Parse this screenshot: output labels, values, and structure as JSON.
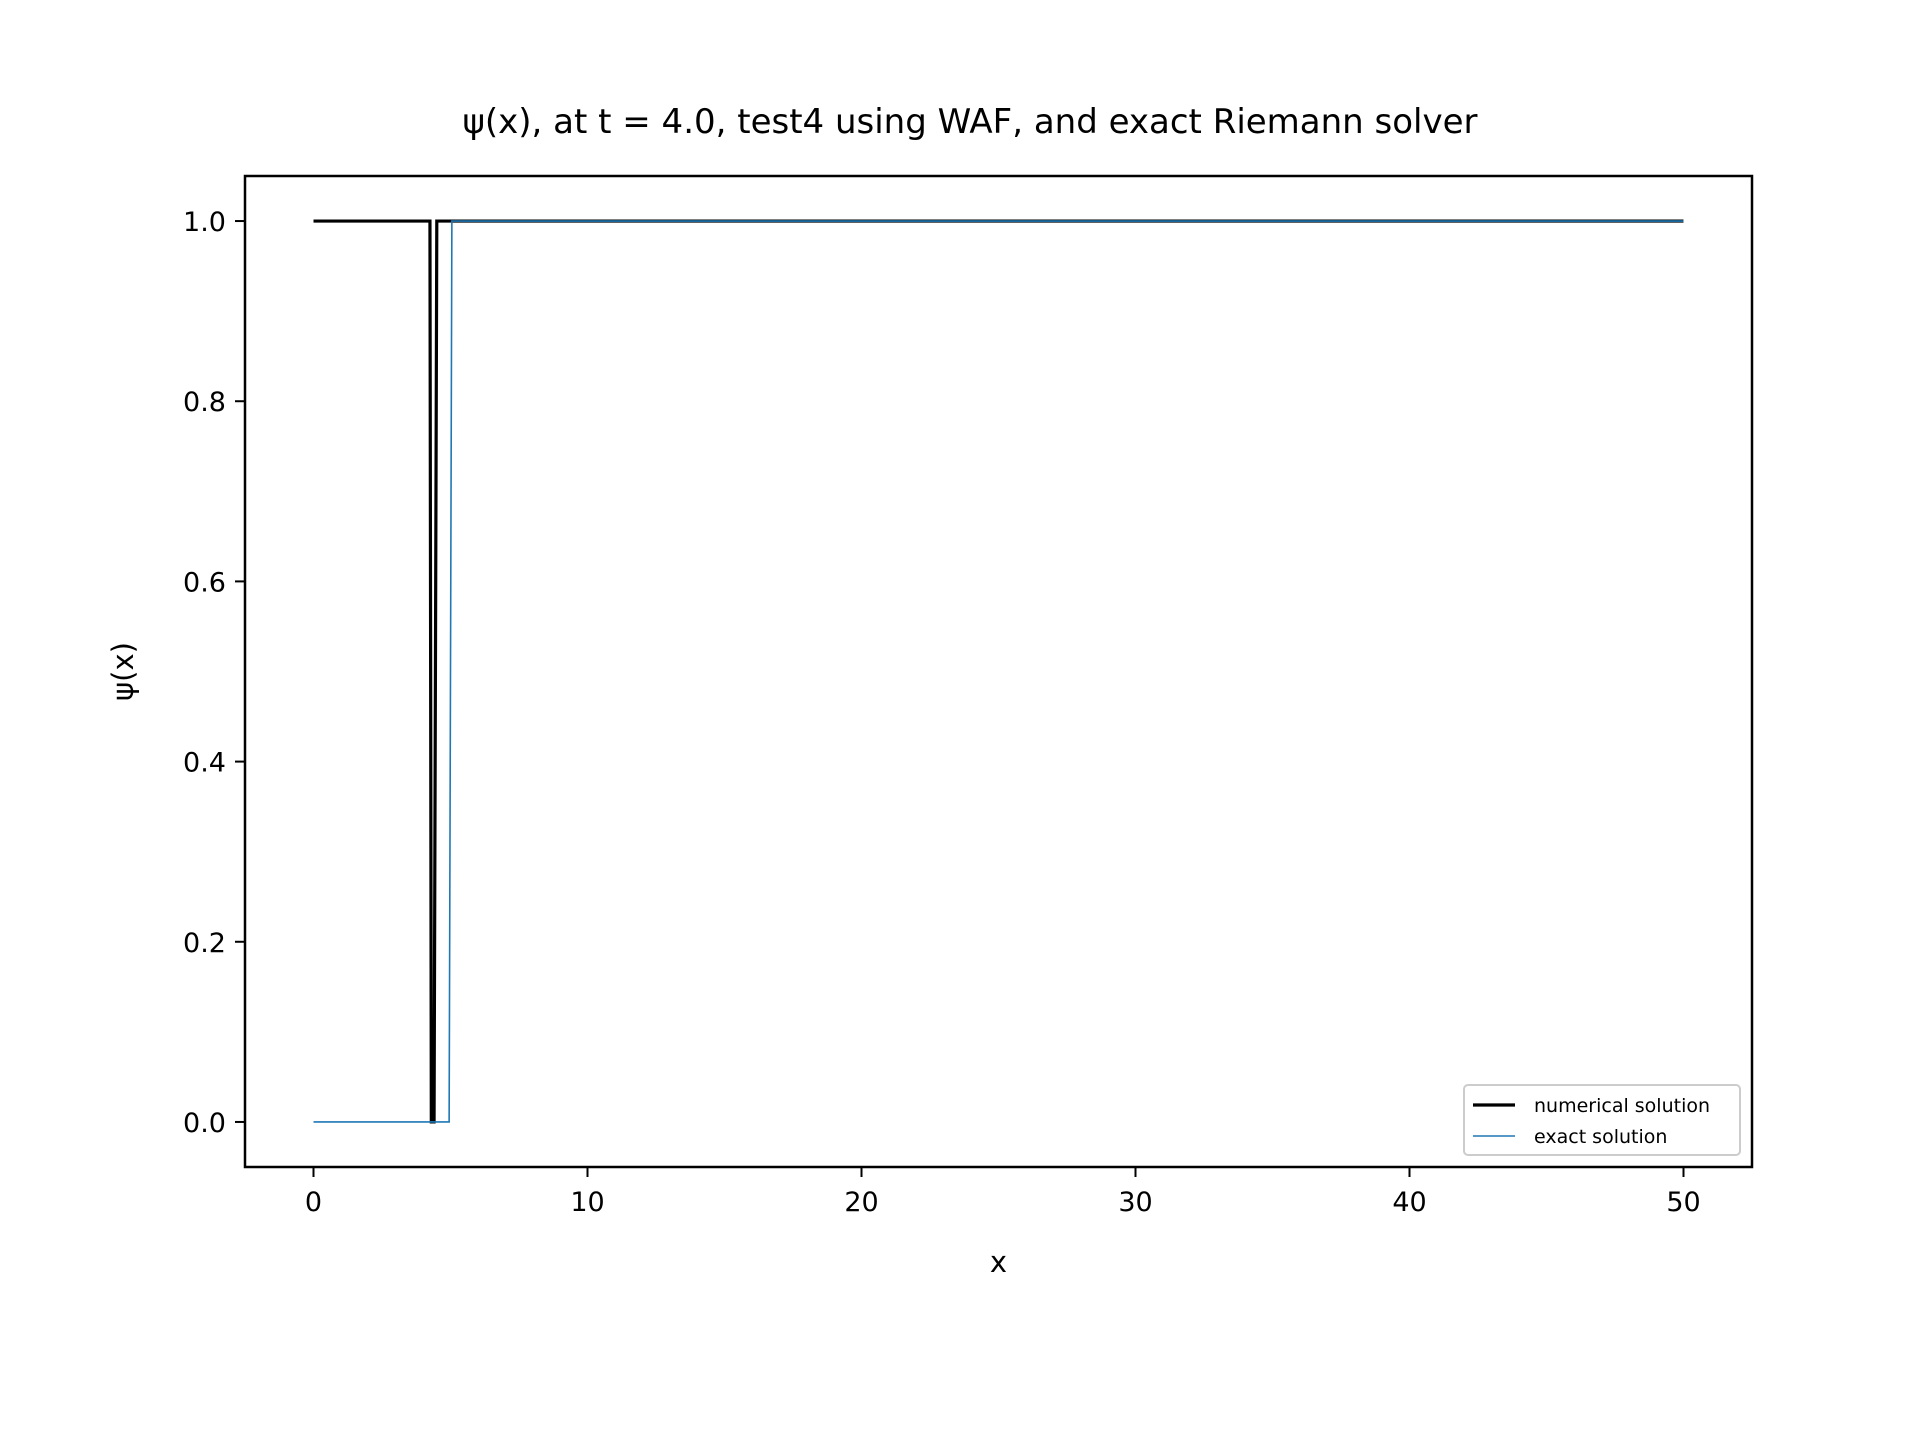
{
  "chart_data": {
    "type": "line",
    "title": "ψ(x), at t = 4.0, test4 using WAF, and exact Riemann solver",
    "xlabel": "x",
    "ylabel": "ψ(x)",
    "xlim": [
      -2.5,
      52.5
    ],
    "ylim": [
      -0.05,
      1.05
    ],
    "xticks": [
      0,
      10,
      20,
      30,
      40,
      50
    ],
    "xtick_labels": [
      "0",
      "10",
      "20",
      "30",
      "40",
      "50"
    ],
    "yticks": [
      0.0,
      0.2,
      0.4,
      0.6,
      0.8,
      1.0
    ],
    "ytick_labels": [
      "0.0",
      "0.2",
      "0.4",
      "0.6",
      "0.8",
      "1.0"
    ],
    "grid": false,
    "legend_position": "lower right",
    "series": [
      {
        "name": "numerical solution",
        "color": "#000000",
        "x": [
          0,
          4.25,
          4.3,
          4.4,
          4.5,
          5.0,
          50
        ],
        "y": [
          1.0,
          1.0,
          0.0,
          0.0,
          1.0,
          1.0,
          1.0
        ]
      },
      {
        "name": "exact solution",
        "color": "#1f77b4",
        "x": [
          0,
          4.95,
          4.95,
          5.05,
          50
        ],
        "y": [
          0.0,
          0.0,
          0.0,
          1.0,
          1.0
        ]
      }
    ]
  }
}
